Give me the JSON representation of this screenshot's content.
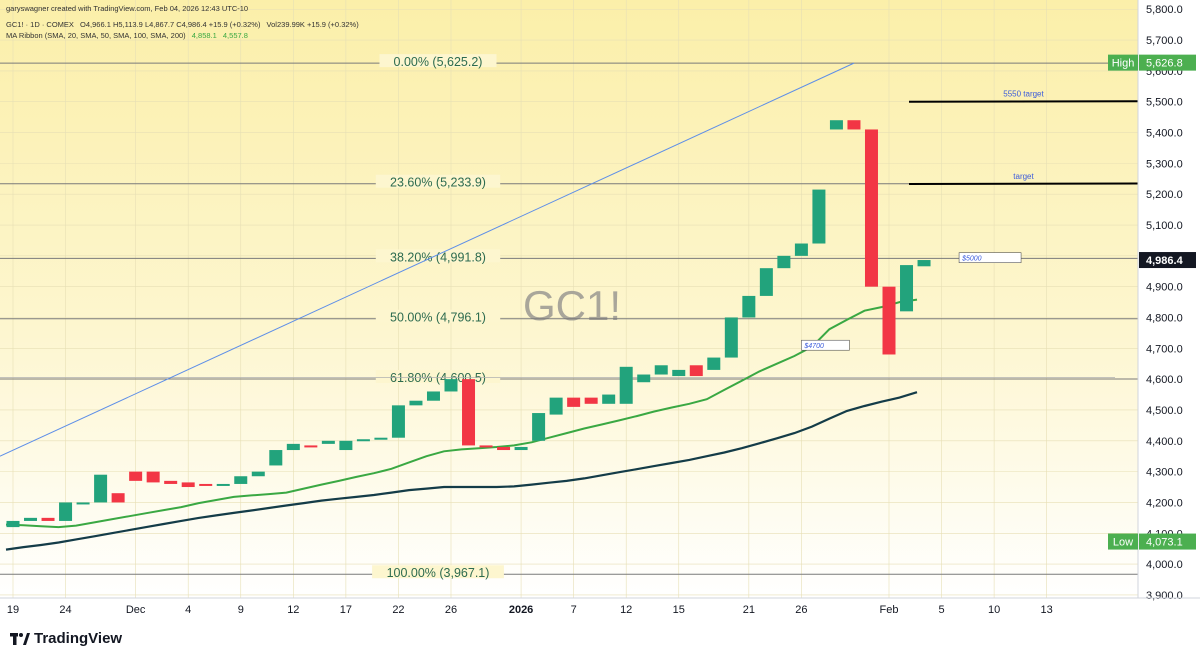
{
  "header": {
    "line1": "garyswagner created with TradingView.com, Feb 04, 2026 12:43 UTC-10",
    "symbol_line": "GC1! · 1D · COMEX",
    "ohlc": "O4,966.1 H5,113.9 L4,867.7 C4,986.4 +15.9 (+0.32%)",
    "volume": "Vol239.99K +15.9 (+0.32%)",
    "ribbon_label": "MA Ribbon (SMA, 20, SMA, 50, SMA, 100, SMA, 200)",
    "ribbon_v1": "4,858.1",
    "ribbon_v2": "4,557.8"
  },
  "watermark": "GC1!",
  "brand": "TradingView",
  "colors": {
    "up": "#22a37c",
    "down": "#f23645",
    "ma_fast": "#3aa843",
    "ma_slow": "#143c48",
    "trend": "#5d8ee8",
    "fib_line": "#7a7a7a",
    "fib_text": "#2d6b4f",
    "price_tag": "#131722",
    "high_low_tag": "#4caf50"
  },
  "chart_data": {
    "type": "candlestick",
    "title": "GC1!",
    "x": [
      "Nov 19",
      "Nov 20",
      "Nov 21",
      "Nov 24",
      "Nov 25",
      "Nov 26",
      "Nov 28",
      "Dec 1",
      "Dec 2",
      "Dec 3",
      "Dec 4",
      "Dec 5",
      "Dec 8",
      "Dec 9",
      "Dec 10",
      "Dec 11",
      "Dec 12",
      "Dec 15",
      "Dec 16",
      "Dec 17",
      "Dec 18",
      "Dec 19",
      "Dec 22",
      "Dec 23",
      "Dec 24",
      "Dec 26",
      "Dec 29",
      "Dec 30",
      "Dec 31",
      "Jan 2",
      "Jan 5",
      "Jan 6",
      "Jan 7",
      "Jan 8",
      "Jan 9",
      "Jan 12",
      "Jan 13",
      "Jan 14",
      "Jan 15",
      "Jan 16",
      "Jan 19",
      "Jan 20",
      "Jan 21",
      "Jan 22",
      "Jan 23",
      "Jan 26",
      "Jan 27",
      "Jan 28",
      "Jan 29",
      "Jan 30",
      "Feb 2",
      "Feb 3",
      "Feb 4"
    ],
    "open": [
      4120,
      4140,
      4150,
      4140,
      4200,
      4200,
      4230,
      4300,
      4300,
      4270,
      4265,
      4260,
      4255,
      4260,
      4285,
      4320,
      4370,
      4385,
      4390,
      4370,
      4400,
      4405,
      4410,
      4515,
      4530,
      4560,
      4600,
      4385,
      4380,
      4370,
      4400,
      4485,
      4540,
      4540,
      4520,
      4520,
      4590,
      4615,
      4610,
      4645,
      4630,
      4670,
      4800,
      4870,
      4960,
      5000,
      5040,
      5410,
      5440,
      5410,
      4900,
      4820,
      4966.1
    ],
    "high": {
      "label": "High",
      "value": "5,626.8"
    },
    "low": {
      "label": "Low",
      "value": "4,073.1"
    },
    "close": [
      4140,
      4150,
      4140,
      4200,
      4200,
      4290,
      4200,
      4270,
      4265,
      4260,
      4250,
      4255,
      4260,
      4285,
      4300,
      4370,
      4390,
      4380,
      4400,
      4400,
      4405,
      4410,
      4515,
      4530,
      4560,
      4600,
      4385,
      4380,
      4370,
      4380,
      4490,
      4540,
      4510,
      4520,
      4550,
      4640,
      4615,
      4645,
      4630,
      4610,
      4670,
      4800,
      4870,
      4960,
      5000,
      5040,
      5215,
      5440,
      5410,
      4900,
      4680,
      4970,
      4986.4
    ],
    "ma_fast": [
      4128,
      4126,
      4123,
      4120,
      4125,
      4135,
      4145,
      4155,
      4165,
      4175,
      4185,
      4198,
      4208,
      4218,
      4223,
      4227,
      4232,
      4245,
      4258,
      4270,
      4283,
      4295,
      4309,
      4330,
      4350,
      4366,
      4372,
      4376,
      4380,
      4385,
      4395,
      4410,
      4425,
      4440,
      4453,
      4466,
      4480,
      4495,
      4508,
      4520,
      4535,
      4565,
      4595,
      4625,
      4650,
      4675,
      4705,
      4762,
      4793,
      4822,
      4834,
      4850,
      4858.1
    ],
    "ma_slow": [
      4047,
      4055,
      4062,
      4070,
      4080,
      4090,
      4100,
      4110,
      4120,
      4130,
      4140,
      4150,
      4158,
      4166,
      4174,
      4182,
      4190,
      4198,
      4206,
      4212,
      4218,
      4224,
      4232,
      4240,
      4245,
      4250,
      4250,
      4250,
      4250,
      4252,
      4258,
      4264,
      4270,
      4278,
      4288,
      4298,
      4308,
      4318,
      4328,
      4338,
      4350,
      4362,
      4376,
      4392,
      4408,
      4425,
      4446,
      4472,
      4497,
      4513,
      4527,
      4540,
      4557.8
    ],
    "fib_levels": [
      {
        "label": "0.00% (5,625.2)",
        "value": 5625.2
      },
      {
        "label": "23.60% (5,233.9)",
        "value": 5233.9
      },
      {
        "label": "38.20% (4,991.8)",
        "value": 4991.8
      },
      {
        "label": "50.00% (4,796.1)",
        "value": 4796.1
      },
      {
        "label": "61.80% (4,600.5)",
        "value": 4600.5
      },
      {
        "label": "100.00% (3,967.1)",
        "value": 3967.1
      }
    ],
    "trendline": {
      "from": {
        "x": "Nov 19",
        "y": 4350
      },
      "to": {
        "x": "Jan 29",
        "y": 5625.2
      }
    },
    "annotations": [
      {
        "text": "5550 target",
        "x_from": "Feb 2",
        "x_to": "Feb 13",
        "y": 5500
      },
      {
        "text": "target",
        "x_from": "Feb 2",
        "x_to": "Feb 13",
        "y": 5233
      },
      {
        "text": "$5000",
        "x": "Feb 6",
        "y": 4994
      },
      {
        "text": "$4700",
        "x": "Jan 26",
        "y": 4710
      }
    ],
    "last_price": "4,986.4",
    "y_ticks": [
      "5,800.0",
      "5,700.0",
      "5,600.0",
      "5,500.0",
      "5,400.0",
      "5,300.0",
      "5,200.0",
      "5,100.0",
      "5,000.0",
      "4,900.0",
      "4,800.0",
      "4,700.0",
      "4,600.0",
      "4,500.0",
      "4,400.0",
      "4,300.0",
      "4,200.0",
      "4,100.0",
      "4,000.0",
      "3,900.0"
    ],
    "y_tick_values": [
      5800,
      5700,
      5600,
      5500,
      5400,
      5300,
      5200,
      5100,
      5000,
      4900,
      4800,
      4700,
      4600,
      4500,
      4400,
      4300,
      4200,
      4100,
      4000,
      3900
    ],
    "x_ticks": [
      {
        "label": "19",
        "at": "Nov 19"
      },
      {
        "label": "24",
        "at": "Nov 24"
      },
      {
        "label": "Dec",
        "at": "Dec 1"
      },
      {
        "label": "4",
        "at": "Dec 4"
      },
      {
        "label": "9",
        "at": "Dec 9"
      },
      {
        "label": "12",
        "at": "Dec 12"
      },
      {
        "label": "17",
        "at": "Dec 17"
      },
      {
        "label": "22",
        "at": "Dec 22"
      },
      {
        "label": "26",
        "at": "Dec 26"
      },
      {
        "label": "2026",
        "at": "Jan 2"
      },
      {
        "label": "7",
        "at": "Jan 7"
      },
      {
        "label": "12",
        "at": "Jan 12"
      },
      {
        "label": "15",
        "at": "Jan 15"
      },
      {
        "label": "21",
        "at": "Jan 21"
      },
      {
        "label": "26",
        "at": "Jan 26"
      },
      {
        "label": "Feb",
        "at": "Feb 2"
      },
      {
        "label": "5",
        "at": "Feb 5"
      },
      {
        "label": "10",
        "at": "Feb 10"
      },
      {
        "label": "13",
        "at": "Feb 13"
      }
    ],
    "y_range": [
      3890,
      5830
    ]
  }
}
